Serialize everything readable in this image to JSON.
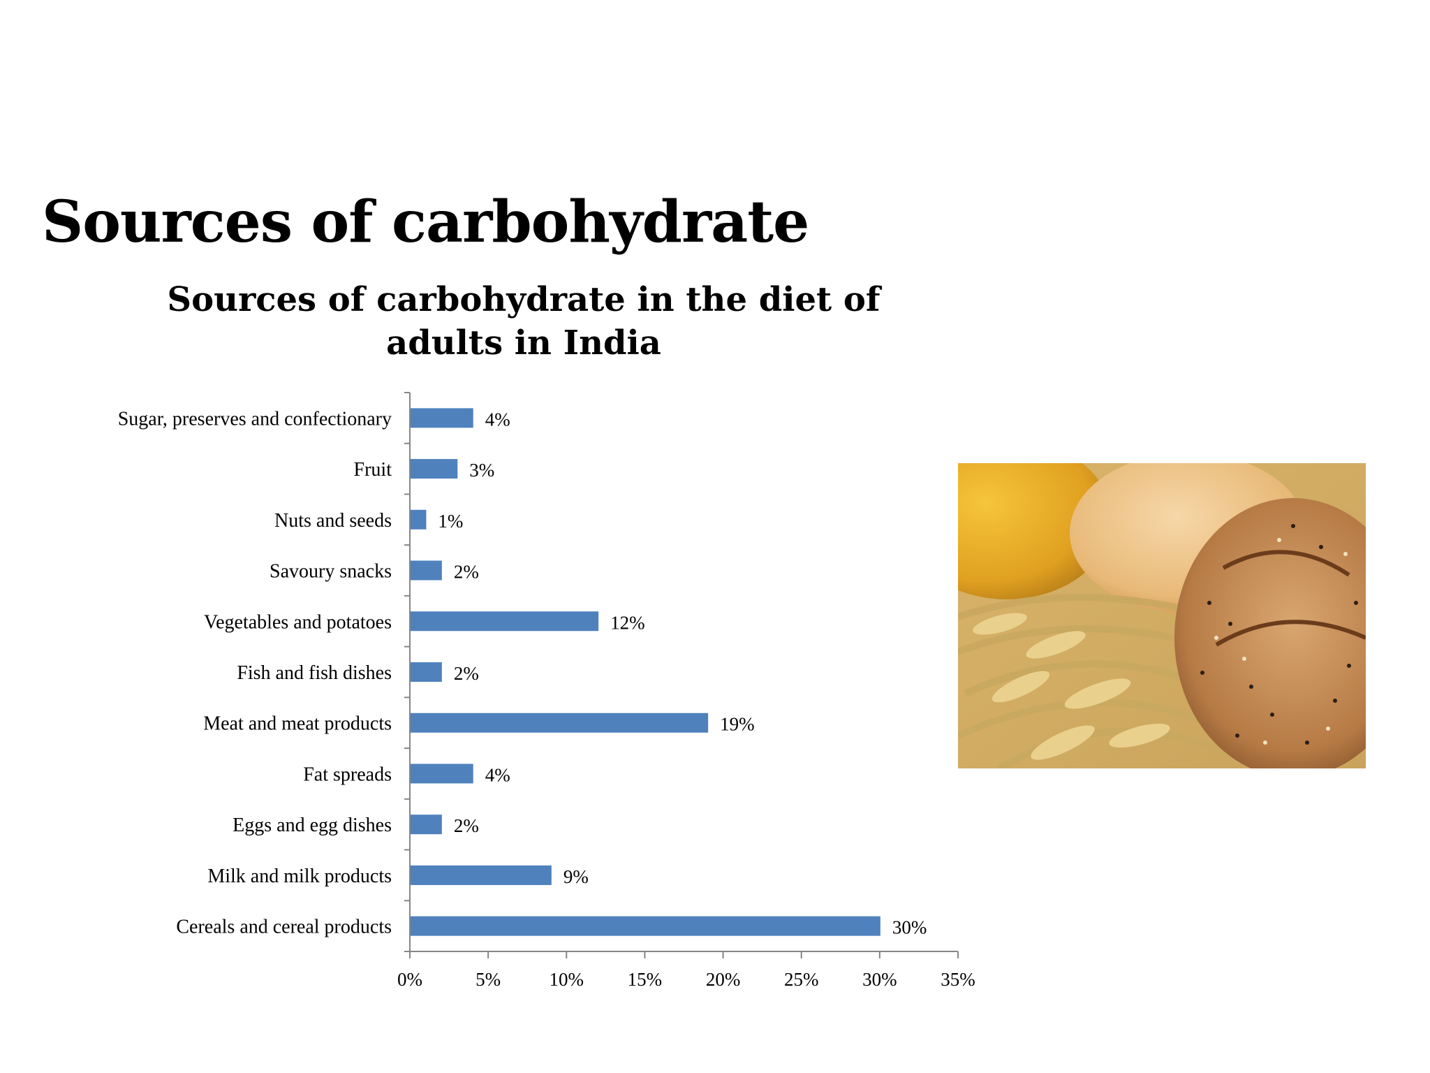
{
  "slide": {
    "title": "Sources of carbohydrate"
  },
  "chart_data": {
    "type": "bar",
    "orientation": "horizontal",
    "title": "Sources of carbohydrate in the diet of adults in India",
    "xlabel": "",
    "ylabel": "",
    "categories": [
      "Sugar, preserves and confectionary",
      "Fruit",
      "Nuts and seeds",
      "Savoury snacks",
      "Vegetables and potatoes",
      "Fish and fish dishes",
      "Meat and meat products",
      "Fat spreads",
      "Eggs and egg dishes",
      "Milk and milk products",
      "Cereals and cereal products"
    ],
    "values": [
      4,
      3,
      1,
      2,
      12,
      2,
      19,
      4,
      2,
      9,
      30
    ],
    "data_labels": [
      "4%",
      "3%",
      "1%",
      "2%",
      "12%",
      "2%",
      "19%",
      "4%",
      "2%",
      "9%",
      "30%"
    ],
    "xlim": [
      0,
      35
    ],
    "xticks": [
      "0%",
      "5%",
      "10%",
      "15%",
      "20%",
      "25%",
      "30%",
      "35%"
    ],
    "grid": false,
    "legend": "none",
    "bar_color": "#4f81bd"
  },
  "image": {
    "icon": "bread-and-wheat-photo"
  }
}
